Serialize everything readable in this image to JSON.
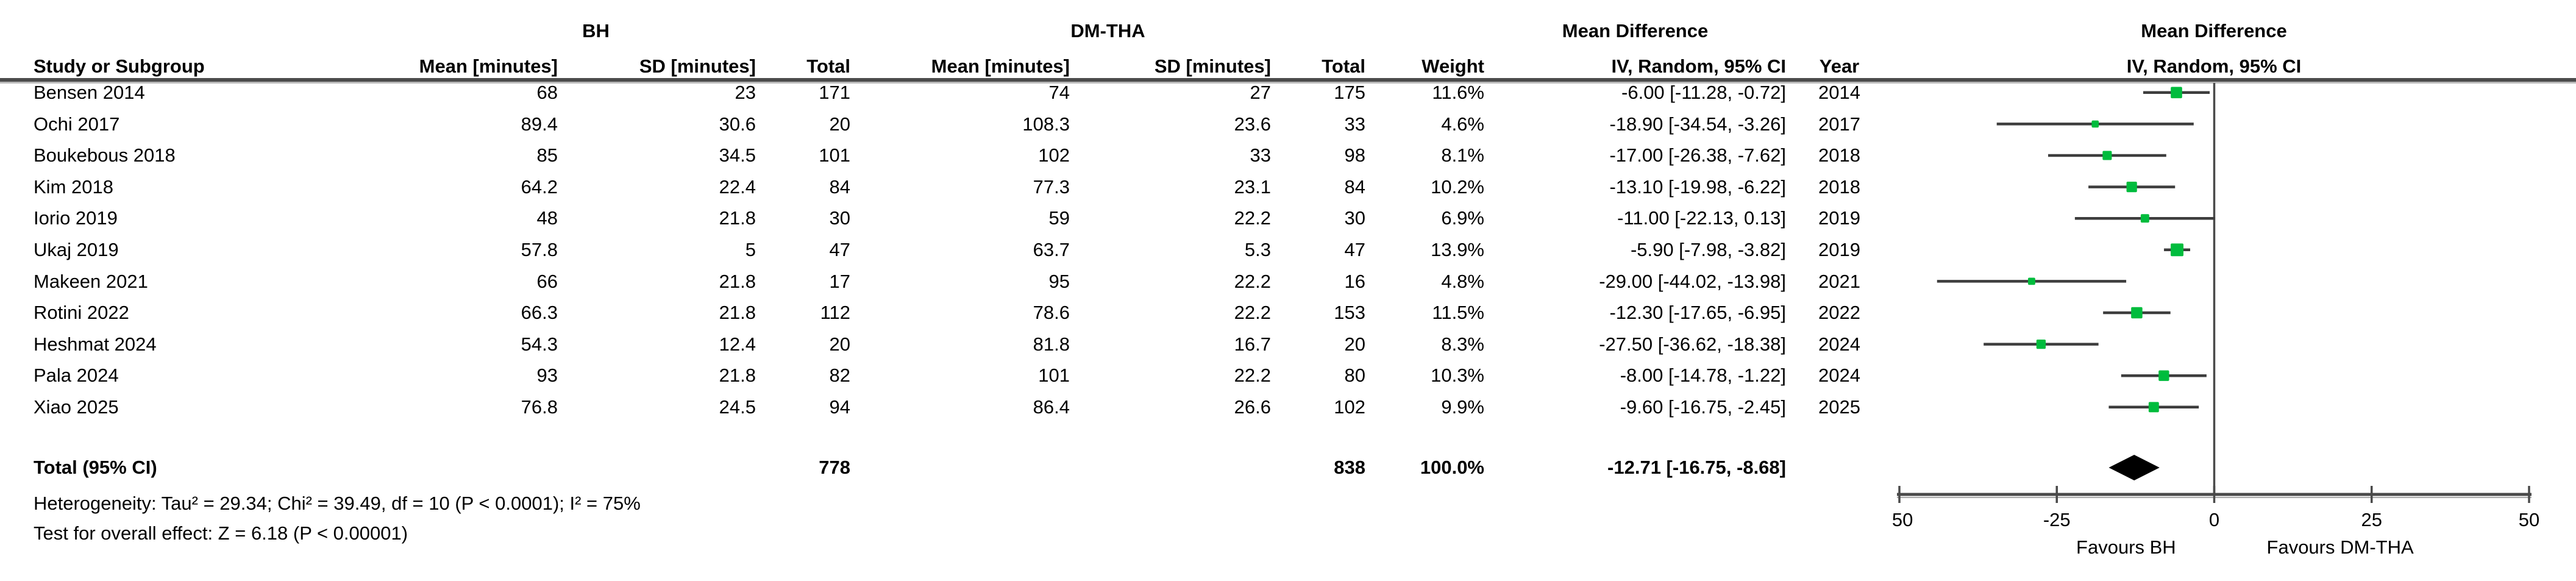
{
  "group_headers": {
    "bh": "BH",
    "dmtha": "DM-THA",
    "md_table": "Mean Difference",
    "md_plot": "Mean Difference"
  },
  "columns": {
    "study": "Study or Subgroup",
    "mean": "Mean [minutes]",
    "sd": "SD [minutes]",
    "total": "Total",
    "weight": "Weight",
    "iv": "IV, Random, 95% CI",
    "year": "Year",
    "iv_plot": "IV, Random, 95% CI"
  },
  "chart_data": {
    "type": "forest",
    "effect_measure": "Mean Difference",
    "method": "IV, Random, 95% CI",
    "studies": [
      {
        "study": "Bensen 2014",
        "bh_mean": "68",
        "bh_sd": "23",
        "bh_total": "171",
        "dm_mean": "74",
        "dm_sd": "27",
        "dm_total": "175",
        "weight": "11.6%",
        "weight_pct": 11.6,
        "md": -6.0,
        "ci_lo": -11.28,
        "ci_hi": -0.72,
        "md_label": "-6.00 [-11.28, -0.72]",
        "year": "2014"
      },
      {
        "study": "Ochi 2017",
        "bh_mean": "89.4",
        "bh_sd": "30.6",
        "bh_total": "20",
        "dm_mean": "108.3",
        "dm_sd": "23.6",
        "dm_total": "33",
        "weight": "4.6%",
        "weight_pct": 4.6,
        "md": -18.9,
        "ci_lo": -34.54,
        "ci_hi": -3.26,
        "md_label": "-18.90 [-34.54, -3.26]",
        "year": "2017"
      },
      {
        "study": "Boukebous 2018",
        "bh_mean": "85",
        "bh_sd": "34.5",
        "bh_total": "101",
        "dm_mean": "102",
        "dm_sd": "33",
        "dm_total": "98",
        "weight": "8.1%",
        "weight_pct": 8.1,
        "md": -17.0,
        "ci_lo": -26.38,
        "ci_hi": -7.62,
        "md_label": "-17.00 [-26.38, -7.62]",
        "year": "2018"
      },
      {
        "study": "Kim 2018",
        "bh_mean": "64.2",
        "bh_sd": "22.4",
        "bh_total": "84",
        "dm_mean": "77.3",
        "dm_sd": "23.1",
        "dm_total": "84",
        "weight": "10.2%",
        "weight_pct": 10.2,
        "md": -13.1,
        "ci_lo": -19.98,
        "ci_hi": -6.22,
        "md_label": "-13.10 [-19.98, -6.22]",
        "year": "2018"
      },
      {
        "study": "Iorio 2019",
        "bh_mean": "48",
        "bh_sd": "21.8",
        "bh_total": "30",
        "dm_mean": "59",
        "dm_sd": "22.2",
        "dm_total": "30",
        "weight": "6.9%",
        "weight_pct": 6.9,
        "md": -11.0,
        "ci_lo": -22.13,
        "ci_hi": 0.13,
        "md_label": "-11.00 [-22.13, 0.13]",
        "year": "2019"
      },
      {
        "study": "Ukaj 2019",
        "bh_mean": "57.8",
        "bh_sd": "5",
        "bh_total": "47",
        "dm_mean": "63.7",
        "dm_sd": "5.3",
        "dm_total": "47",
        "weight": "13.9%",
        "weight_pct": 13.9,
        "md": -5.9,
        "ci_lo": -7.98,
        "ci_hi": -3.82,
        "md_label": "-5.90 [-7.98, -3.82]",
        "year": "2019"
      },
      {
        "study": "Makeen 2021",
        "bh_mean": "66",
        "bh_sd": "21.8",
        "bh_total": "17",
        "dm_mean": "95",
        "dm_sd": "22.2",
        "dm_total": "16",
        "weight": "4.8%",
        "weight_pct": 4.8,
        "md": -29.0,
        "ci_lo": -44.02,
        "ci_hi": -13.98,
        "md_label": "-29.00 [-44.02, -13.98]",
        "year": "2021"
      },
      {
        "study": "Rotini 2022",
        "bh_mean": "66.3",
        "bh_sd": "21.8",
        "bh_total": "112",
        "dm_mean": "78.6",
        "dm_sd": "22.2",
        "dm_total": "153",
        "weight": "11.5%",
        "weight_pct": 11.5,
        "md": -12.3,
        "ci_lo": -17.65,
        "ci_hi": -6.95,
        "md_label": "-12.30 [-17.65, -6.95]",
        "year": "2022"
      },
      {
        "study": "Heshmat 2024",
        "bh_mean": "54.3",
        "bh_sd": "12.4",
        "bh_total": "20",
        "dm_mean": "81.8",
        "dm_sd": "16.7",
        "dm_total": "20",
        "weight": "8.3%",
        "weight_pct": 8.3,
        "md": -27.5,
        "ci_lo": -36.62,
        "ci_hi": -18.38,
        "md_label": "-27.50 [-36.62, -18.38]",
        "year": "2024"
      },
      {
        "study": "Pala 2024",
        "bh_mean": "93",
        "bh_sd": "21.8",
        "bh_total": "82",
        "dm_mean": "101",
        "dm_sd": "22.2",
        "dm_total": "80",
        "weight": "10.3%",
        "weight_pct": 10.3,
        "md": -8.0,
        "ci_lo": -14.78,
        "ci_hi": -1.22,
        "md_label": "-8.00 [-14.78, -1.22]",
        "year": "2024"
      },
      {
        "study": "Xiao 2025",
        "bh_mean": "76.8",
        "bh_sd": "24.5",
        "bh_total": "94",
        "dm_mean": "86.4",
        "dm_sd": "26.6",
        "dm_total": "102",
        "weight": "9.9%",
        "weight_pct": 9.9,
        "md": -9.6,
        "ci_lo": -16.75,
        "ci_hi": -2.45,
        "md_label": "-9.60 [-16.75, -2.45]",
        "year": "2025"
      }
    ],
    "total": {
      "label": "Total (95% CI)",
      "bh_total": "778",
      "dm_total": "838",
      "weight": "100.0%",
      "md": -12.71,
      "ci_lo": -16.75,
      "ci_hi": -8.68,
      "md_label": "-12.71 [-16.75, -8.68]"
    },
    "heterogeneity": "Heterogeneity: Tau² = 29.34; Chi² = 39.49, df = 10 (P < 0.0001); I² = 75%",
    "overall_effect": "Test for overall effect: Z = 6.18 (P < 0.00001)",
    "axis": {
      "min": -50,
      "max": 50,
      "ticks": [
        -50,
        -25,
        0,
        25,
        50
      ],
      "favours_left": "Favours BH",
      "favours_right": "Favours DM-THA"
    },
    "colors": {
      "marker": "#00bc3d",
      "ci_line": "#3d3d3d",
      "axis": "#4a4a4a",
      "diamond": "#000000",
      "text": "#000000"
    }
  }
}
